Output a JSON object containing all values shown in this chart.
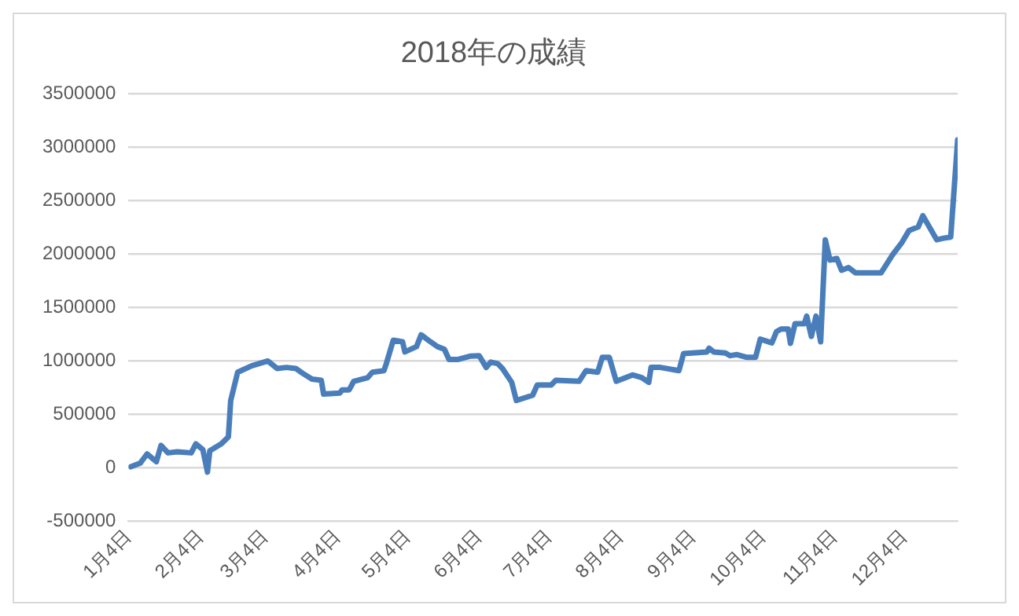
{
  "chart_data": {
    "type": "line",
    "title": "2018年の成績",
    "x": [
      "--01-05",
      "--01-09",
      "--01-12",
      "--01-16",
      "--01-18",
      "--01-21",
      "--01-25",
      "--01-31",
      "--02-02",
      "--02-05",
      "--02-07",
      "--02-08",
      "--02-13",
      "--02-16",
      "--02-17",
      "--02-20",
      "--02-26",
      "--03-05",
      "--03-09",
      "--03-13",
      "--03-17",
      "--03-20",
      "--03-24",
      "--03-28",
      "--03-29",
      "--04-05",
      "--04-06",
      "--04-09",
      "--04-11",
      "--04-17",
      "--04-19",
      "--04-24",
      "--04-25",
      "--04-28",
      "--05-02",
      "--05-03",
      "--05-08",
      "--05-10",
      "--05-14",
      "--05-17",
      "--05-20",
      "--05-22",
      "--05-26",
      "--05-31",
      "--06-04",
      "--06-07",
      "--06-09",
      "--06-12",
      "--06-14",
      "--06-18",
      "--06-20",
      "--06-27",
      "--06-29",
      "--07-05",
      "--07-07",
      "--07-17",
      "--07-20",
      "--07-25",
      "--07-27",
      "--07-30",
      "--08-02",
      "--08-09",
      "--08-13",
      "--08-16",
      "--08-17",
      "--08-21",
      "--08-29",
      "--08-31",
      "--09-10",
      "--09-11",
      "--09-13",
      "--09-18",
      "--09-20",
      "--09-23",
      "--09-27",
      "--10-01",
      "--10-03",
      "--10-08",
      "--10-10",
      "--10-12",
      "--10-15",
      "--10-16",
      "--10-18",
      "--10-22",
      "--10-23",
      "--10-25",
      "--10-27",
      "--10-29",
      "--10-31",
      "--11-02",
      "--11-05",
      "--11-07",
      "--11-10",
      "--11-13",
      "--11-24",
      "--11-29",
      "--12-03",
      "--12-06",
      "--12-10",
      "--12-12",
      "--12-18",
      "--12-21",
      "--12-24",
      "--12-27"
    ],
    "series": [
      {
        "color": "#4a7ebb",
        "values": [
          10000,
          43000,
          130000,
          57000,
          210000,
          140000,
          150000,
          140000,
          225000,
          170000,
          -40000,
          160000,
          225000,
          290000,
          630000,
          895000,
          955000,
          1000000,
          930000,
          940000,
          930000,
          885000,
          830000,
          820000,
          690000,
          700000,
          730000,
          730000,
          810000,
          845000,
          895000,
          910000,
          975000,
          1195000,
          1180000,
          1085000,
          1135000,
          1245000,
          1180000,
          1135000,
          1110000,
          1015000,
          1015000,
          1045000,
          1050000,
          940000,
          990000,
          975000,
          930000,
          800000,
          630000,
          680000,
          775000,
          775000,
          820000,
          810000,
          910000,
          895000,
          1035000,
          1035000,
          810000,
          870000,
          845000,
          800000,
          940000,
          940000,
          910000,
          1070000,
          1085000,
          1120000,
          1085000,
          1075000,
          1050000,
          1060000,
          1035000,
          1035000,
          1205000,
          1170000,
          1275000,
          1300000,
          1300000,
          1165000,
          1350000,
          1350000,
          1420000,
          1230000,
          1420000,
          1180000,
          2135000,
          1945000,
          1960000,
          1850000,
          1875000,
          1825000,
          1825000,
          1995000,
          2110000,
          2220000,
          2255000,
          2360000,
          2135000,
          2150000,
          2160000,
          3070000
        ]
      }
    ],
    "xlim": [
      "--01-04",
      "--12-27"
    ],
    "xticks": [
      {
        "value": "--01-04",
        "label": "1月4日"
      },
      {
        "value": "--02-04",
        "label": "2月4日"
      },
      {
        "value": "--03-04",
        "label": "3月4日"
      },
      {
        "value": "--04-04",
        "label": "4月4日"
      },
      {
        "value": "--05-04",
        "label": "5月4日"
      },
      {
        "value": "--06-04",
        "label": "6月4日"
      },
      {
        "value": "--07-04",
        "label": "7月4日"
      },
      {
        "value": "--08-04",
        "label": "8月4日"
      },
      {
        "value": "--09-04",
        "label": "9月4日"
      },
      {
        "value": "--10-04",
        "label": "10月4日"
      },
      {
        "value": "--11-04",
        "label": "11月4日"
      },
      {
        "value": "--12-04",
        "label": "12月4日"
      }
    ],
    "ylim": [
      -500000,
      3500000
    ],
    "yticks": [
      -500000,
      0,
      500000,
      1000000,
      1500000,
      2000000,
      2500000,
      3000000,
      3500000
    ],
    "grid": "y",
    "legend": false,
    "marker": "none",
    "line_style": "solid"
  }
}
